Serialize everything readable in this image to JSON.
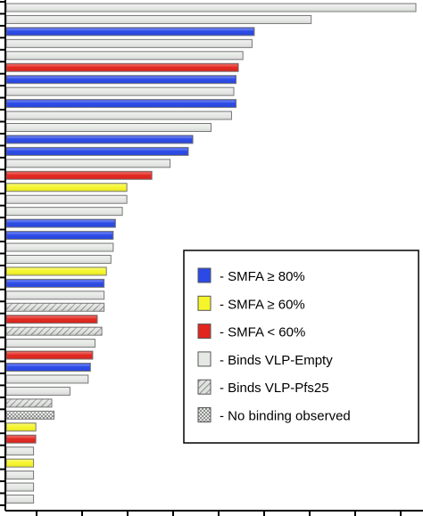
{
  "colors": {
    "blue": "#2a49e6",
    "yellow": "#f5f52a",
    "red": "#e2261e",
    "empty": "#e6e8e6",
    "pfs25": "#d6d8d6",
    "nobind": "#d2d4d2",
    "axis": "#000000"
  },
  "legend": {
    "items": [
      {
        "key": "blue",
        "label": "- SMFA ≥ 80%",
        "pattern": "solid"
      },
      {
        "key": "yellow",
        "label": "- SMFA ≥ 60%",
        "pattern": "solid"
      },
      {
        "key": "red",
        "label": "- SMFA < 60%",
        "pattern": "solid"
      },
      {
        "key": "empty",
        "label": "- Binds VLP-Empty",
        "pattern": "solid"
      },
      {
        "key": "pfs25",
        "label": "- Binds VLP-Pfs25",
        "pattern": "hatch"
      },
      {
        "key": "nobind",
        "label": "- No binding observed",
        "pattern": "check"
      }
    ]
  },
  "chart_data": {
    "type": "bar",
    "orientation": "horizontal",
    "title": "",
    "xlabel": "",
    "ylabel": "",
    "xlim": [
      0,
      9
    ],
    "grid": false,
    "legend_position": "bottom-right",
    "values": [
      9.0,
      6.7,
      5.45,
      5.4,
      5.2,
      5.1,
      5.05,
      5.0,
      5.05,
      4.95,
      4.5,
      4.1,
      4.0,
      3.6,
      3.2,
      2.65,
      2.65,
      2.55,
      2.4,
      2.35,
      2.35,
      2.3,
      2.2,
      2.15,
      2.15,
      2.15,
      2.0,
      2.1,
      1.95,
      1.9,
      1.85,
      1.8,
      1.4,
      1.0,
      1.05,
      0.65,
      0.65,
      0.6,
      0.6,
      0.6,
      0.6,
      0.6
    ],
    "classes": [
      "empty",
      "empty",
      "blue",
      "empty",
      "empty",
      "red",
      "blue",
      "empty",
      "blue",
      "empty",
      "empty",
      "blue",
      "blue",
      "empty",
      "red",
      "yellow",
      "empty",
      "empty",
      "blue",
      "blue",
      "empty",
      "empty",
      "yellow",
      "blue",
      "empty",
      "pfs25",
      "red",
      "pfs25",
      "empty",
      "red",
      "blue",
      "empty",
      "empty",
      "pfs25",
      "nobind",
      "yellow",
      "red",
      "empty",
      "yellow",
      "empty",
      "empty",
      "empty"
    ]
  }
}
